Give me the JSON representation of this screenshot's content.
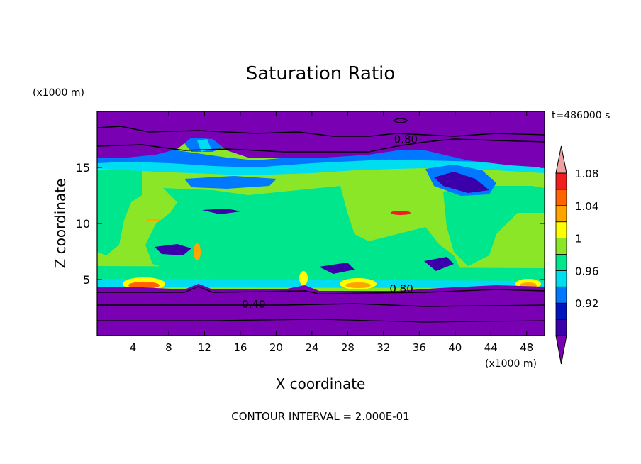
{
  "chart_data": {
    "type": "heatmap",
    "title": "Saturation Ratio",
    "xlabel": "X coordinate",
    "ylabel": "Z coordinate",
    "x_unit": "(x1000 m)",
    "y_unit": "(x1000 m)",
    "time_label": "t=486000 s",
    "footer": "CONTOUR INTERVAL = 2.000E-01",
    "xlim": [
      0,
      50
    ],
    "ylim": [
      0,
      20
    ],
    "x_ticks": [
      4,
      8,
      12,
      16,
      20,
      24,
      28,
      32,
      36,
      40,
      44,
      48
    ],
    "y_ticks": [
      5,
      10,
      15
    ],
    "colorbar": {
      "levels": [
        0.92,
        0.96,
        1,
        1.04,
        1.08
      ],
      "labels": [
        "0.92",
        "0.96",
        "1",
        "1.04",
        "1.08"
      ],
      "colors": [
        "#7a00b4",
        "#3c00aa",
        "#0014be",
        "#0078ff",
        "#00dcf0",
        "#00e68c",
        "#8ce628",
        "#ffff00",
        "#ffa500",
        "#ff6400",
        "#f01e1e",
        "#f0a0a0"
      ]
    },
    "contour_labels": [
      {
        "text": "0.80",
        "x": 34.5,
        "y": 17.3
      },
      {
        "text": "0.80",
        "x": 34.0,
        "y": 4.0
      },
      {
        "text": "0.40",
        "x": 17.5,
        "y": 2.6
      }
    ],
    "colors": {
      "dry_upper": "#7a00b4",
      "ice_blue": "#0078ff",
      "cyan": "#00dcf0",
      "teal": "#00e68c",
      "lime": "#8ce628",
      "yellow": "#ffff00",
      "orange": "#ffa500",
      "red": "#f01e1e"
    }
  }
}
